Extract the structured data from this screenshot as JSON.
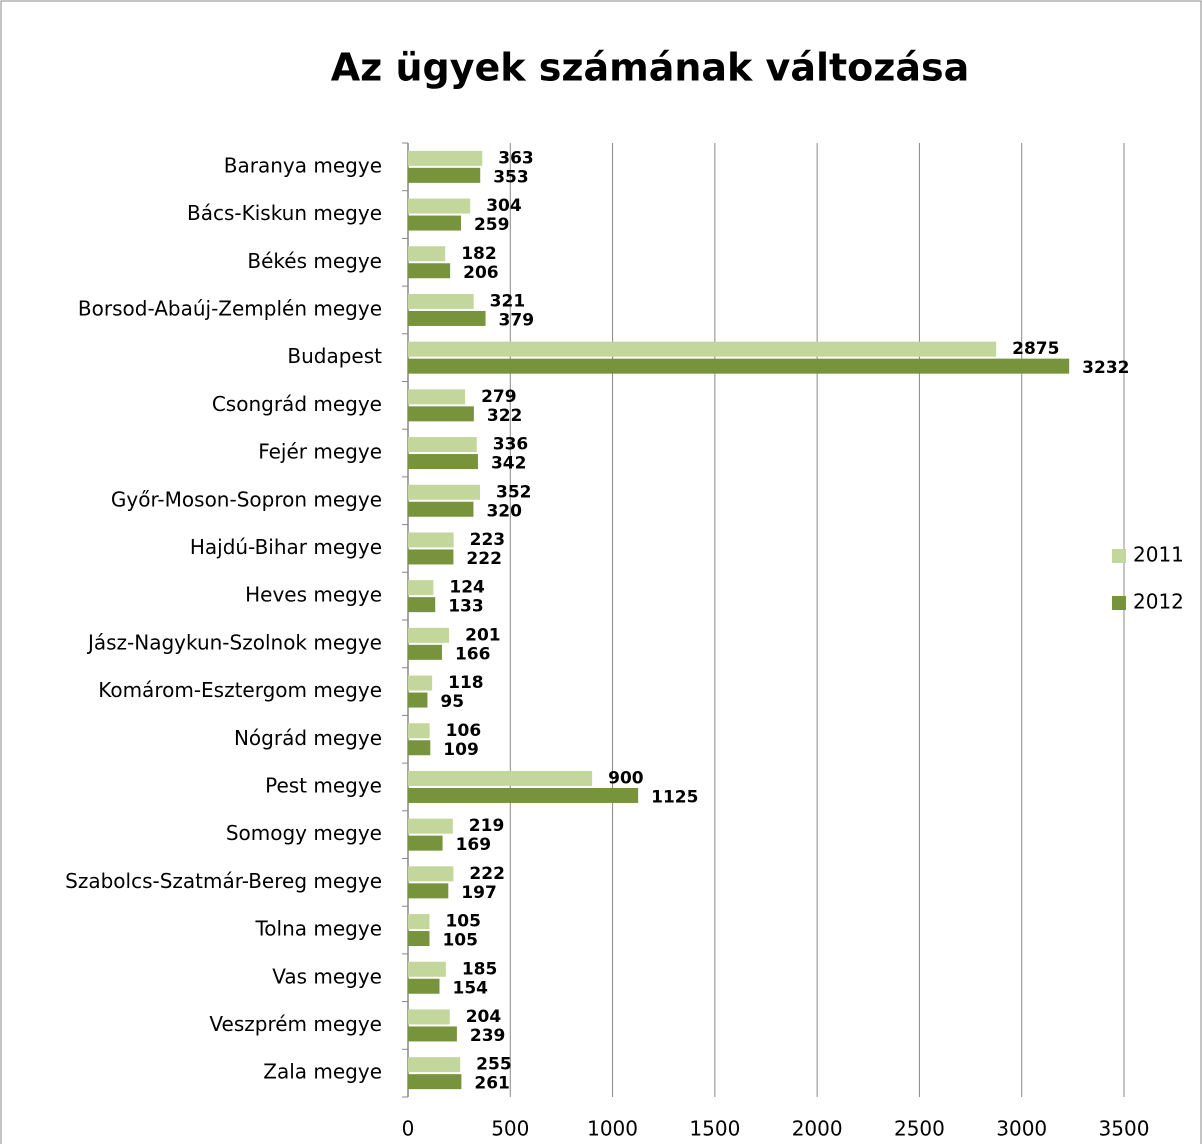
{
  "chart_data": {
    "type": "bar",
    "orientation": "horizontal",
    "title": "Az ügyek számának változása",
    "categories": [
      "Baranya megye",
      "Bács-Kiskun megye",
      "Békés megye",
      "Borsod-Abaúj-Zemplén  megye",
      "Budapest",
      "Csongrád megye",
      "Fejér megye",
      "Győr-Moson-Sopron megye",
      "Hajdú-Bihar megye",
      "Heves megye",
      "Jász-Nagykun-Szolnok megye",
      "Komárom-Esztergom megye",
      "Nógrád megye",
      "Pest  megye",
      "Somogy megye",
      "Szabolcs-Szatmár-Bereg megye",
      "Tolna  megye",
      "Vas megye",
      "Veszprém megye",
      "Zala megye"
    ],
    "series": [
      {
        "name": "2011",
        "color": "#c3d69b",
        "values": [
          363,
          304,
          182,
          321,
          2875,
          279,
          336,
          352,
          223,
          124,
          201,
          118,
          106,
          900,
          219,
          222,
          105,
          185,
          204,
          255
        ]
      },
      {
        "name": "2012",
        "color": "#77933c",
        "values": [
          353,
          259,
          206,
          379,
          3232,
          322,
          342,
          320,
          222,
          133,
          166,
          95,
          109,
          1125,
          169,
          197,
          105,
          154,
          239,
          261
        ]
      }
    ],
    "xlim": [
      0,
      3500
    ],
    "xticks": [
      0,
      500,
      1000,
      1500,
      2000,
      2500,
      3000,
      3500
    ],
    "grid": true,
    "legend": "right"
  }
}
